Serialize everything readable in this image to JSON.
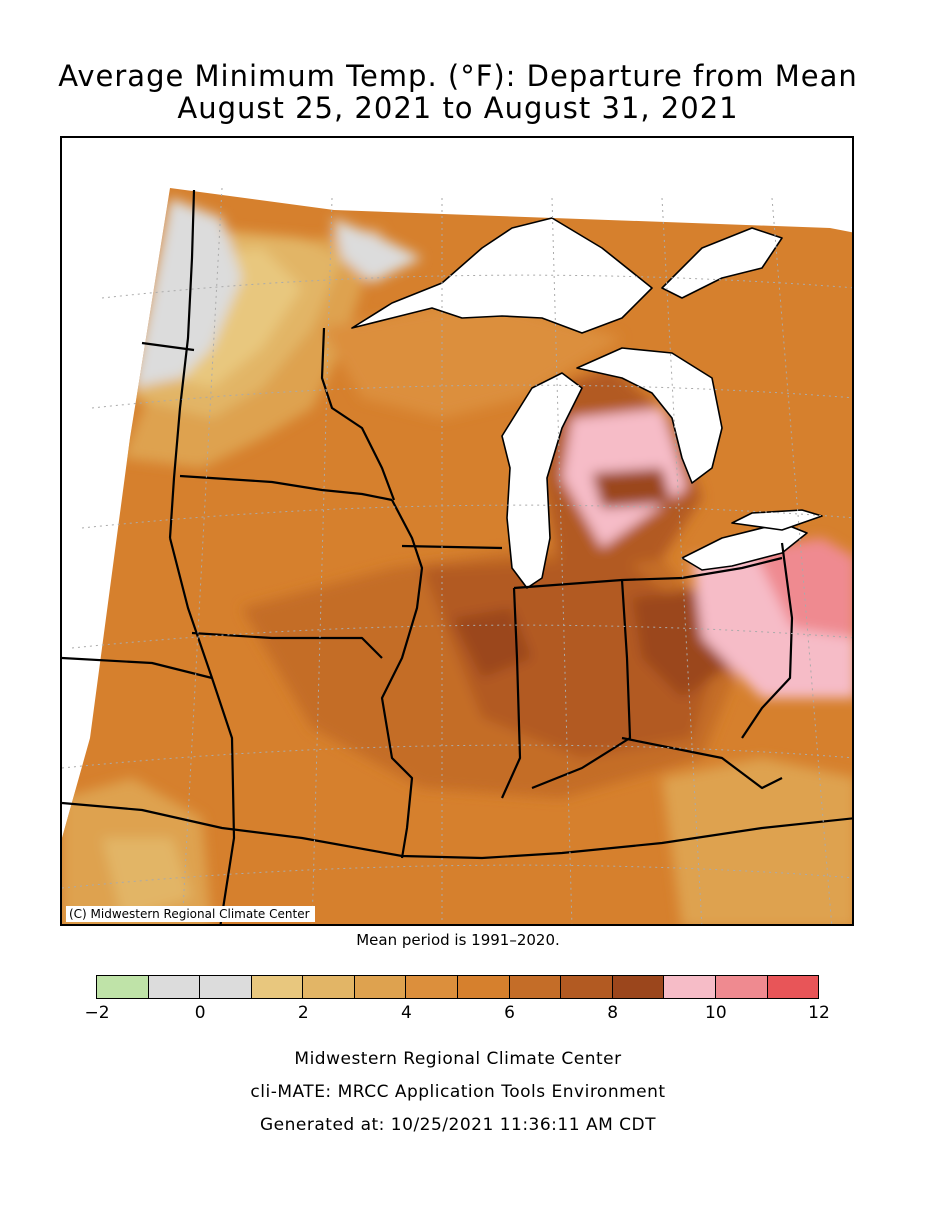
{
  "header": {
    "title_line1": "Average Minimum Temp. (°F): Departure from Mean",
    "title_line2": "August 25, 2021 to August 31, 2021"
  },
  "map": {
    "copyright": "(C) Midwestern Regional Climate Center",
    "mean_note": "Mean period is 1991–2020.",
    "region": "Midwest United States",
    "unit": "°F"
  },
  "legend": {
    "bins": [
      {
        "from": -2,
        "to": -1,
        "color": "#bfe3a8"
      },
      {
        "from": -1,
        "to": 0,
        "color": "#dcdcdc"
      },
      {
        "from": 0,
        "to": 1,
        "color": "#dcdcdc"
      },
      {
        "from": 1,
        "to": 2,
        "color": "#e8c77e"
      },
      {
        "from": 2,
        "to": 3,
        "color": "#e2b566"
      },
      {
        "from": 3,
        "to": 4,
        "color": "#dea24f"
      },
      {
        "from": 4,
        "to": 5,
        "color": "#dc8f3c"
      },
      {
        "from": 5,
        "to": 6,
        "color": "#d6802d"
      },
      {
        "from": 6,
        "to": 7,
        "color": "#c46d28"
      },
      {
        "from": 7,
        "to": 8,
        "color": "#b25a22"
      },
      {
        "from": 8,
        "to": 9,
        "color": "#9b461c"
      },
      {
        "from": 9,
        "to": 10,
        "color": "#f6bcc7"
      },
      {
        "from": 10,
        "to": 11,
        "color": "#ef8a90"
      },
      {
        "from": 11,
        "to": 12,
        "color": "#e85558"
      }
    ],
    "tick_labels": [
      "−2",
      "0",
      "2",
      "4",
      "6",
      "8",
      "10",
      "12"
    ]
  },
  "footer": {
    "line1": "Midwestern Regional Climate Center",
    "line2": "cli-MATE: MRCC Application Tools Environment",
    "line3": "Generated at: 10/25/2021 11:36:11 AM CDT"
  }
}
